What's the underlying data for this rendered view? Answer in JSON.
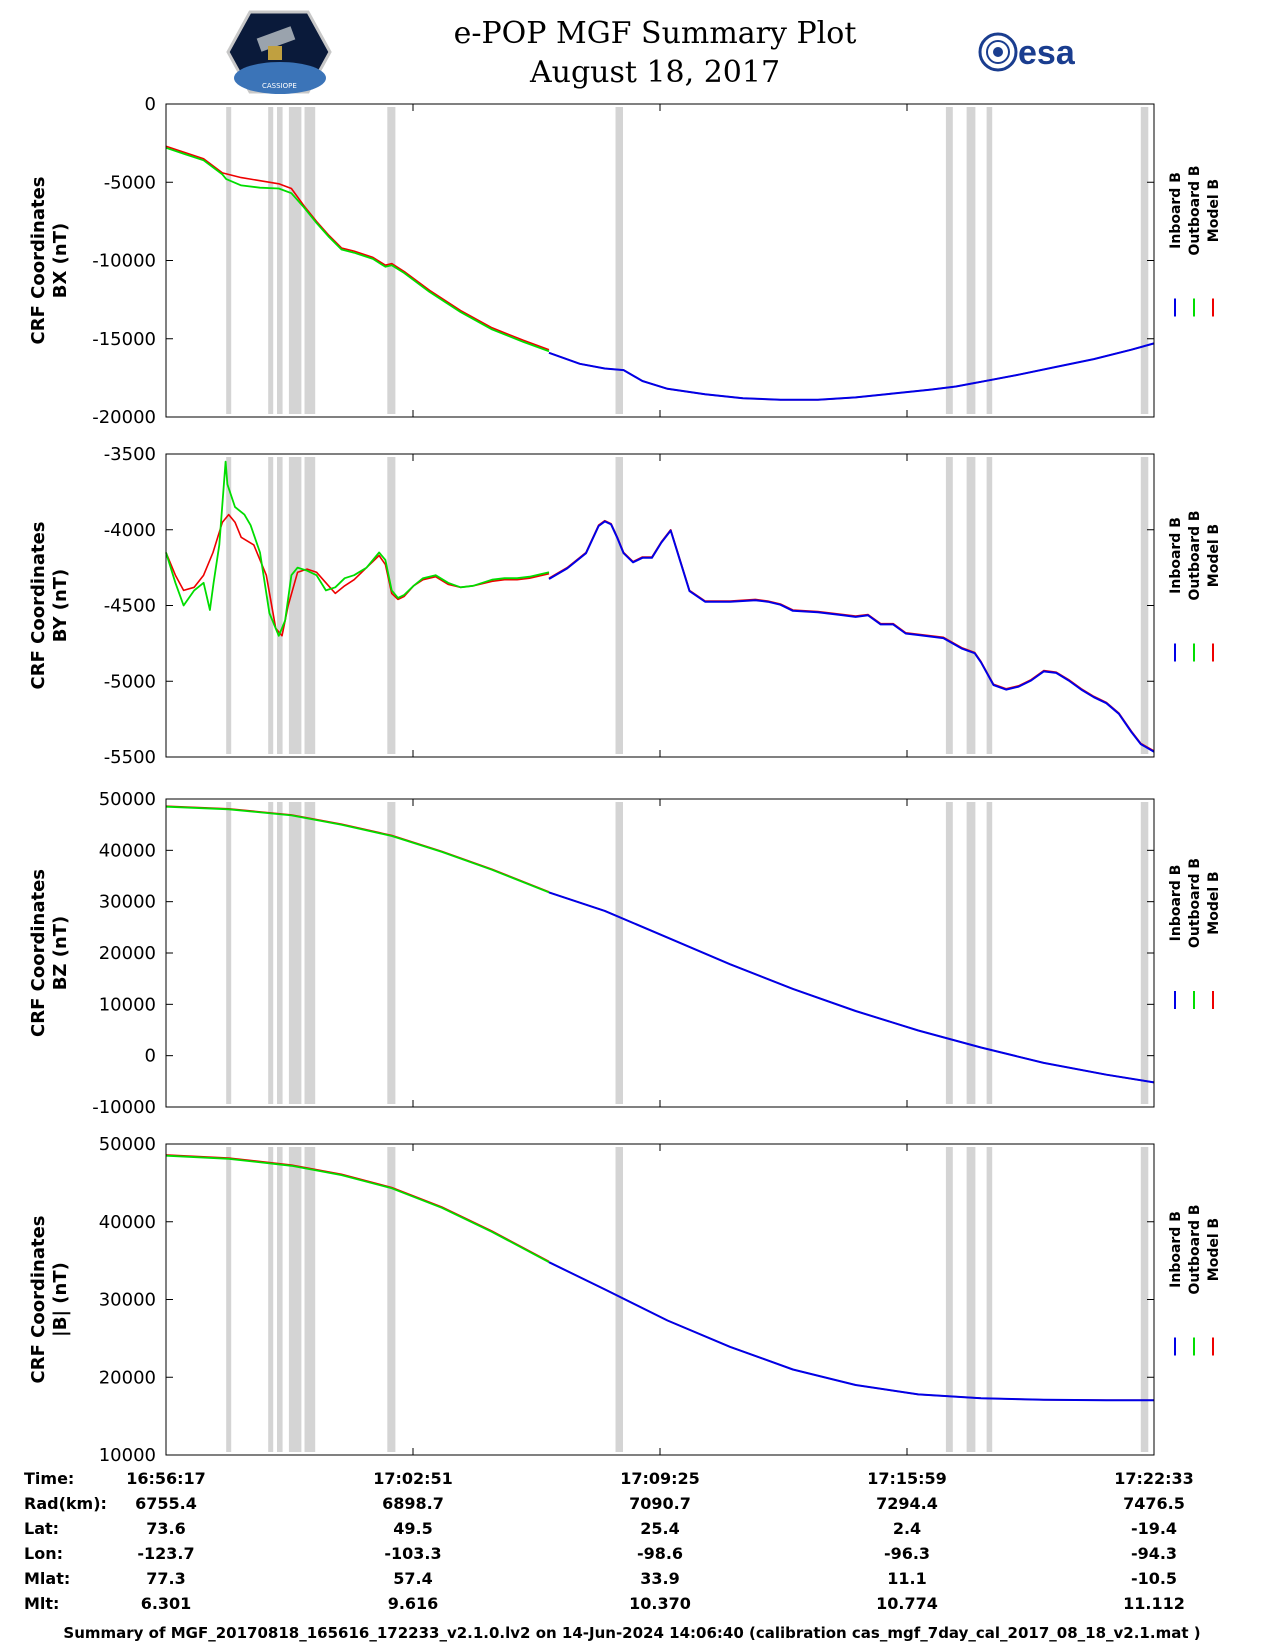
{
  "chart_data": {
    "type": "line",
    "title": "e-POP MGF Summary Plot",
    "subtitle": "August 18, 2017",
    "logos": {
      "left": "CASSIOPE satellite mission logo",
      "right": "esa"
    },
    "series_names": [
      "Inboard B",
      "Outboard B",
      "Model B"
    ],
    "series_colors": {
      "Inboard B": "#0000e6",
      "Outboard B": "#00dd00",
      "Model B": "#ee0000"
    },
    "x_domain": [
      0,
      1576
    ],
    "x_tick_positions_s": [
      0,
      394,
      788,
      1182,
      1576
    ],
    "gap_intervals_s": [
      [
        96,
        104
      ],
      [
        163,
        171
      ],
      [
        177,
        186
      ],
      [
        196,
        216
      ],
      [
        221,
        238
      ],
      [
        353,
        366
      ],
      [
        717,
        729
      ],
      [
        1244,
        1255
      ],
      [
        1277,
        1291
      ],
      [
        1309,
        1318
      ],
      [
        1555,
        1567
      ]
    ],
    "transition_time_s": 611,
    "panels": [
      {
        "key": "bx",
        "ylabel_line1": "CRF Coordinates",
        "ylabel_line2": "BX (nT)",
        "ylim": [
          -20000,
          0
        ],
        "yticks": [
          "0",
          "-5000",
          "-10000",
          "-15000",
          "-20000"
        ],
        "ytick_values": [
          0,
          -5000,
          -10000,
          -15000,
          -20000
        ],
        "series_points": {
          "measured_t": [
            0,
            30,
            60,
            90,
            96,
            120,
            150,
            180,
            200,
            220,
            240,
            260,
            280,
            300,
            330,
            350,
            360,
            380,
            420,
            470,
            520,
            570,
            611
          ],
          "measured_v": [
            -2800,
            -3200,
            -3600,
            -4500,
            -4800,
            -5200,
            -5350,
            -5400,
            -5700,
            -6600,
            -7600,
            -8500,
            -9300,
            -9500,
            -9900,
            -10400,
            -10300,
            -10800,
            -12000,
            -13300,
            -14400,
            -15200,
            -15800
          ],
          "model_t": [
            0,
            30,
            60,
            90,
            120,
            150,
            180,
            200,
            220,
            240,
            260,
            280,
            300,
            330,
            350,
            360,
            380,
            420,
            470,
            520,
            570,
            611
          ],
          "model_v": [
            -2700,
            -3100,
            -3500,
            -4400,
            -4700,
            -4900,
            -5100,
            -5400,
            -6500,
            -7500,
            -8400,
            -9200,
            -9400,
            -9800,
            -10300,
            -10200,
            -10700,
            -11900,
            -13200,
            -14300,
            -15100,
            -15700
          ],
          "inboard_t": [
            611,
            660,
            700,
            730,
            760,
            800,
            860,
            920,
            980,
            1040,
            1100,
            1160,
            1220,
            1260,
            1300,
            1360,
            1420,
            1480,
            1540,
            1576
          ],
          "inboard_v": [
            -15900,
            -16600,
            -16900,
            -17000,
            -17700,
            -18200,
            -18550,
            -18800,
            -18900,
            -18900,
            -18750,
            -18500,
            -18250,
            -18050,
            -17750,
            -17300,
            -16800,
            -16300,
            -15700,
            -15300
          ]
        }
      },
      {
        "key": "by",
        "ylabel_line1": "CRF Coordinates",
        "ylabel_line2": "BY (nT)",
        "ylim": [
          -5500,
          -3500
        ],
        "yticks": [
          "-3500",
          "-4000",
          "-4500",
          "-5000",
          "-5500"
        ],
        "ytick_values": [
          -3500,
          -4000,
          -4500,
          -5000,
          -5500
        ],
        "series_points": {
          "measured_t": [
            0,
            15,
            28,
            45,
            60,
            70,
            76,
            85,
            95,
            98,
            110,
            125,
            135,
            150,
            165,
            180,
            190,
            200,
            210,
            225,
            240,
            255,
            270,
            285,
            300,
            320,
            340,
            350,
            360,
            370,
            380,
            395,
            410,
            430,
            450,
            470,
            490,
            520,
            540,
            560,
            580,
            611
          ],
          "measured_v": [
            -4150,
            -4350,
            -4500,
            -4400,
            -4350,
            -4530,
            -4350,
            -4100,
            -3550,
            -3700,
            -3850,
            -3900,
            -3970,
            -4150,
            -4550,
            -4700,
            -4600,
            -4300,
            -4250,
            -4270,
            -4300,
            -4400,
            -4380,
            -4320,
            -4300,
            -4250,
            -4150,
            -4200,
            -4400,
            -4450,
            -4430,
            -4370,
            -4320,
            -4300,
            -4350,
            -4380,
            -4370,
            -4330,
            -4320,
            -4320,
            -4310,
            -4280
          ],
          "model_t": [
            0,
            15,
            28,
            45,
            60,
            75,
            90,
            100,
            110,
            120,
            140,
            160,
            175,
            185,
            195,
            210,
            225,
            240,
            255,
            270,
            285,
            300,
            320,
            340,
            350,
            360,
            370,
            380,
            395,
            410,
            430,
            450,
            470,
            490,
            520,
            540,
            560,
            580,
            611
          ],
          "model_v": [
            -4150,
            -4300,
            -4400,
            -4380,
            -4300,
            -4150,
            -3950,
            -3900,
            -3950,
            -4050,
            -4100,
            -4300,
            -4650,
            -4700,
            -4500,
            -4280,
            -4260,
            -4280,
            -4350,
            -4420,
            -4370,
            -4330,
            -4250,
            -4170,
            -4230,
            -4420,
            -4460,
            -4440,
            -4370,
            -4330,
            -4310,
            -4360,
            -4380,
            -4370,
            -4340,
            -4330,
            -4330,
            -4320,
            -4290
          ],
          "inboard_t": [
            611,
            640,
            670,
            690,
            700,
            710,
            720,
            730,
            745,
            760,
            775,
            790,
            805,
            820,
            835,
            860,
            900,
            940,
            960,
            980,
            1000,
            1040,
            1080,
            1100,
            1120,
            1140,
            1160,
            1180,
            1200,
            1240,
            1270,
            1290,
            1300,
            1320,
            1340,
            1360,
            1380,
            1400,
            1420,
            1440,
            1460,
            1480,
            1500,
            1520,
            1540,
            1555,
            1576
          ],
          "inboard_v": [
            -4320,
            -4250,
            -4150,
            -3970,
            -3940,
            -3960,
            -4050,
            -4150,
            -4210,
            -4180,
            -4180,
            -4080,
            -4000,
            -4200,
            -4400,
            -4470,
            -4470,
            -4460,
            -4470,
            -4490,
            -4530,
            -4540,
            -4560,
            -4570,
            -4560,
            -4620,
            -4620,
            -4680,
            -4690,
            -4710,
            -4780,
            -4810,
            -4870,
            -5020,
            -5050,
            -5030,
            -4990,
            -4930,
            -4940,
            -4990,
            -5050,
            -5100,
            -5140,
            -5210,
            -5330,
            -5410,
            -5460
          ]
        }
      },
      {
        "key": "bz",
        "ylabel_line1": "CRF Coordinates",
        "ylabel_line2": "BZ (nT)",
        "ylim": [
          -10000,
          50000
        ],
        "yticks": [
          "50000",
          "40000",
          "30000",
          "20000",
          "10000",
          "0",
          "-10000"
        ],
        "ytick_values": [
          50000,
          40000,
          30000,
          20000,
          10000,
          0,
          -10000
        ],
        "series_points": {
          "measured_t": [
            0,
            100,
            200,
            280,
            360,
            440,
            520,
            611
          ],
          "measured_v": [
            48500,
            48000,
            46800,
            45000,
            42800,
            39700,
            36200,
            31800
          ],
          "model_t": [
            0,
            100,
            200,
            280,
            360,
            440,
            520,
            611
          ],
          "model_v": [
            48600,
            48100,
            46900,
            45100,
            42900,
            39800,
            36300,
            31900
          ],
          "inboard_t": [
            611,
            700,
            800,
            900,
            1000,
            1100,
            1200,
            1300,
            1400,
            1500,
            1576
          ],
          "inboard_v": [
            31800,
            28200,
            23000,
            17800,
            13000,
            8700,
            4900,
            1600,
            -1400,
            -3700,
            -5200
          ]
        }
      },
      {
        "key": "bmag",
        "ylabel_line1": "CRF Coordinates",
        "ylabel_line2": "|B| (nT)",
        "ylim": [
          10000,
          50000
        ],
        "yticks": [
          "50000",
          "40000",
          "30000",
          "20000",
          "10000"
        ],
        "ytick_values": [
          50000,
          40000,
          30000,
          20000,
          10000
        ],
        "series_points": {
          "measured_t": [
            0,
            100,
            200,
            280,
            360,
            440,
            520,
            611
          ],
          "measured_v": [
            48500,
            48100,
            47200,
            46000,
            44300,
            41800,
            38700,
            34800
          ],
          "model_t": [
            0,
            100,
            200,
            280,
            360,
            440,
            520,
            611
          ],
          "model_v": [
            48600,
            48200,
            47300,
            46100,
            44400,
            41900,
            38800,
            34900
          ],
          "inboard_t": [
            611,
            700,
            800,
            900,
            1000,
            1100,
            1200,
            1300,
            1400,
            1500,
            1576
          ],
          "inboard_v": [
            34800,
            31300,
            27300,
            23900,
            21000,
            19000,
            17800,
            17300,
            17100,
            17050,
            17050
          ]
        }
      }
    ]
  },
  "info_table": {
    "labels": [
      "Time:",
      "Rad(km):",
      "Lat:",
      "Lon:",
      "Mlat:",
      "Mlt:"
    ],
    "columns": [
      [
        "16:56:17",
        "6755.4",
        "73.6",
        "-123.7",
        "77.3",
        "6.301"
      ],
      [
        "17:02:51",
        "6898.7",
        "49.5",
        "-103.3",
        "57.4",
        "9.616"
      ],
      [
        "17:09:25",
        "7090.7",
        "25.4",
        "-98.6",
        "33.9",
        "10.370"
      ],
      [
        "17:15:59",
        "7294.4",
        "2.4",
        "-96.3",
        "11.1",
        "10.774"
      ],
      [
        "17:22:33",
        "7476.5",
        "-19.4",
        "-94.3",
        "-10.5",
        "11.112"
      ]
    ]
  },
  "footer": "Summary of MGF_20170818_165616_172233_v2.1.0.lv2 on 14-Jun-2024 14:06:40 (calibration cas_mgf_7day_cal_2017_08_18_v2.1.mat )"
}
